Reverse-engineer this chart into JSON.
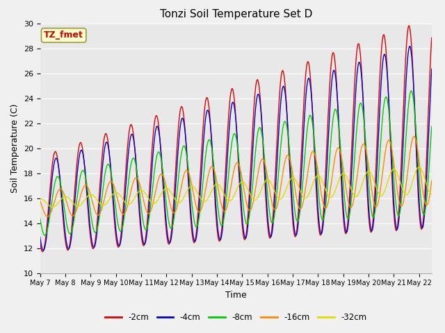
{
  "title": "Tonzi Soil Temperature Set D",
  "xlabel": "Time",
  "ylabel": "Soil Temperature (C)",
  "ylim": [
    10,
    30
  ],
  "annotation_text": "TZ_fmet",
  "annotation_bg": "#ffffcc",
  "annotation_fg": "#cc0000",
  "bg_color": "#e8e8e8",
  "fig_bg_color": "#f0f0f0",
  "legend_entries": [
    "-2cm",
    "-4cm",
    "-8cm",
    "-16cm",
    "-32cm"
  ],
  "line_colors": [
    "#dd0000",
    "#0000cc",
    "#00cc00",
    "#ff8800",
    "#dddd00"
  ],
  "x_tick_labels": [
    "May 7",
    "May 8",
    "May 9",
    "May 10",
    "May 11",
    "May 12",
    "May 13",
    "May 14",
    "May 15",
    "May 16",
    "May 17",
    "May 18",
    "May 19",
    "May 20",
    "May 21",
    "May 22"
  ]
}
